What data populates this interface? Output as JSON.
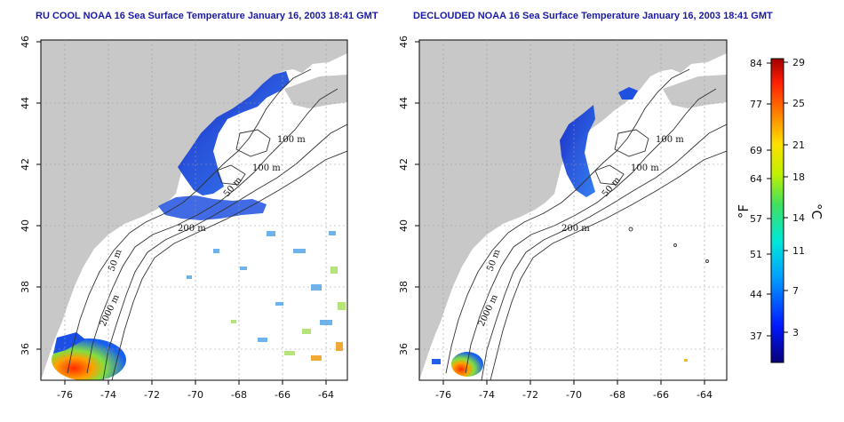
{
  "panels": [
    {
      "id": "left",
      "title": "RU COOL NOAA 16 Sea Surface Temperature January 16, 2003 18:41 GMT",
      "contour_labels": [
        "100 m",
        "100 m",
        "50 m",
        "200 m",
        "50 m",
        "2000 m"
      ]
    },
    {
      "id": "right",
      "title": "DECLOUDED NOAA 16 Sea Surface Temperature January 16, 2003 18:41 GMT",
      "contour_labels": [
        "100 m",
        "100 m",
        "50 m",
        "200 m",
        "50 m",
        "2000 m"
      ]
    }
  ],
  "axes": {
    "longitude_ticks": [
      "-76",
      "-74",
      "-72",
      "-70",
      "-68",
      "-66",
      "-64"
    ],
    "latitude_ticks": [
      "46",
      "44",
      "42",
      "40",
      "38",
      "36"
    ]
  },
  "colorbar": {
    "fahrenheit_ticks": [
      "84",
      "77",
      "69",
      "64",
      "57",
      "51",
      "44",
      "37"
    ],
    "celsius_ticks": [
      "29",
      "25",
      "21",
      "18",
      "14",
      "11",
      "7",
      "3"
    ],
    "fahrenheit_unit": "°F",
    "celsius_unit": "°C"
  },
  "colors": {
    "land": "#c8c8c8",
    "title": "#1a1aa6",
    "water_cold": "#1e3cd8",
    "water_warm": "#e03010"
  }
}
